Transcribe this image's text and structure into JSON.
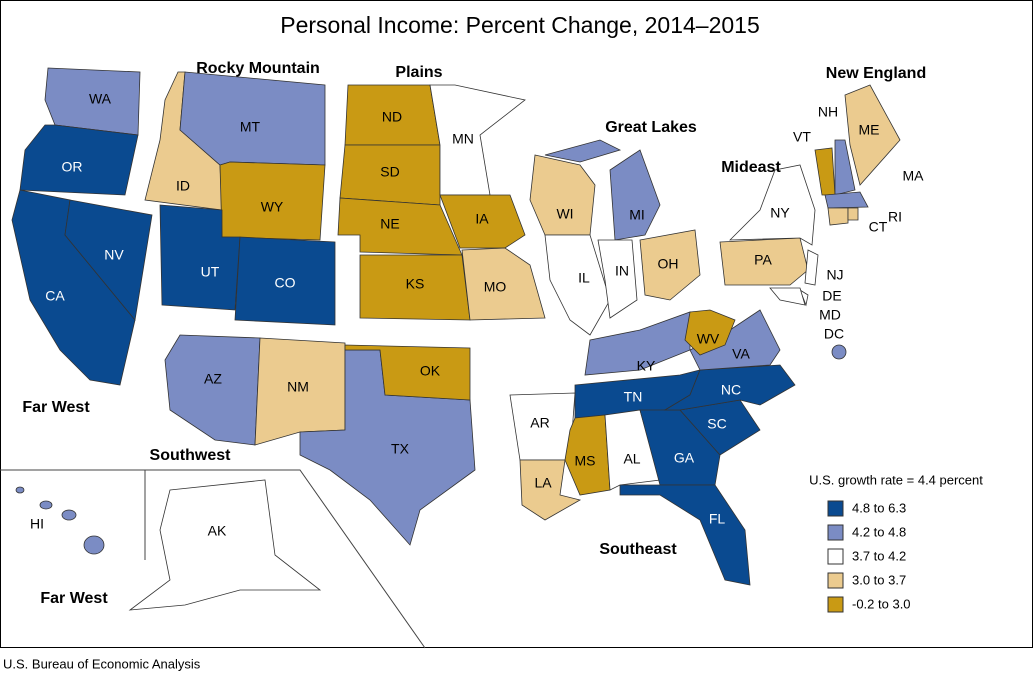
{
  "title": "Personal Income: Percent Change, 2014–2015",
  "growth_note": "U.S. growth rate = 4.4 percent",
  "source": "U.S. Bureau of Economic Analysis",
  "legend": [
    {
      "label": "4.8 to 6.3",
      "color": "#0a4a90"
    },
    {
      "label": "4.2 to 4.8",
      "color": "#7b8cc4"
    },
    {
      "label": "3.7 to 4.2",
      "color": "#ffffff"
    },
    {
      "label": "3.0 to 3.7",
      "color": "#ebcb8f"
    },
    {
      "label": "-0.2 to 3.0",
      "color": "#c99a14"
    }
  ],
  "regions": [
    "Rocky Mountain",
    "Plains",
    "Great Lakes",
    "New England",
    "Mideast",
    "Far West",
    "Southwest",
    "Southeast",
    "Far West"
  ],
  "states": [
    {
      "abbr": "WA",
      "color": "#7b8cc4"
    },
    {
      "abbr": "OR",
      "color": "#0a4a90"
    },
    {
      "abbr": "CA",
      "color": "#0a4a90"
    },
    {
      "abbr": "NV",
      "color": "#0a4a90"
    },
    {
      "abbr": "ID",
      "color": "#ebcb8f"
    },
    {
      "abbr": "MT",
      "color": "#7b8cc4"
    },
    {
      "abbr": "WY",
      "color": "#c99a14"
    },
    {
      "abbr": "UT",
      "color": "#0a4a90"
    },
    {
      "abbr": "CO",
      "color": "#0a4a90"
    },
    {
      "abbr": "AZ",
      "color": "#7b8cc4"
    },
    {
      "abbr": "NM",
      "color": "#ebcb8f"
    },
    {
      "abbr": "TX",
      "color": "#7b8cc4"
    },
    {
      "abbr": "OK",
      "color": "#c99a14"
    },
    {
      "abbr": "ND",
      "color": "#c99a14"
    },
    {
      "abbr": "SD",
      "color": "#c99a14"
    },
    {
      "abbr": "NE",
      "color": "#c99a14"
    },
    {
      "abbr": "KS",
      "color": "#c99a14"
    },
    {
      "abbr": "MN",
      "color": "#ffffff"
    },
    {
      "abbr": "IA",
      "color": "#c99a14"
    },
    {
      "abbr": "MO",
      "color": "#ebcb8f"
    },
    {
      "abbr": "WI",
      "color": "#ebcb8f"
    },
    {
      "abbr": "MI",
      "color": "#7b8cc4"
    },
    {
      "abbr": "IL",
      "color": "#ffffff"
    },
    {
      "abbr": "IN",
      "color": "#ffffff"
    },
    {
      "abbr": "OH",
      "color": "#ebcb8f"
    },
    {
      "abbr": "KY",
      "color": "#7b8cc4"
    },
    {
      "abbr": "TN",
      "color": "#0a4a90"
    },
    {
      "abbr": "AR",
      "color": "#ffffff"
    },
    {
      "abbr": "LA",
      "color": "#ebcb8f"
    },
    {
      "abbr": "MS",
      "color": "#c99a14"
    },
    {
      "abbr": "AL",
      "color": "#ffffff"
    },
    {
      "abbr": "GA",
      "color": "#0a4a90"
    },
    {
      "abbr": "FL",
      "color": "#0a4a90"
    },
    {
      "abbr": "SC",
      "color": "#0a4a90"
    },
    {
      "abbr": "NC",
      "color": "#0a4a90"
    },
    {
      "abbr": "VA",
      "color": "#7b8cc4"
    },
    {
      "abbr": "WV",
      "color": "#c99a14"
    },
    {
      "abbr": "PA",
      "color": "#ebcb8f"
    },
    {
      "abbr": "NY",
      "color": "#ffffff"
    },
    {
      "abbr": "NJ",
      "color": "#ffffff"
    },
    {
      "abbr": "DE",
      "color": "#ffffff"
    },
    {
      "abbr": "MD",
      "color": "#ffffff"
    },
    {
      "abbr": "DC",
      "color": "#7b8cc4"
    },
    {
      "abbr": "VT",
      "color": "#c99a14"
    },
    {
      "abbr": "NH",
      "color": "#7b8cc4"
    },
    {
      "abbr": "ME",
      "color": "#ebcb8f"
    },
    {
      "abbr": "MA",
      "color": "#7b8cc4"
    },
    {
      "abbr": "CT",
      "color": "#ebcb8f"
    },
    {
      "abbr": "RI",
      "color": "#ebcb8f"
    },
    {
      "abbr": "AK",
      "color": "#ffffff"
    },
    {
      "abbr": "HI",
      "color": "#7b8cc4"
    }
  ]
}
